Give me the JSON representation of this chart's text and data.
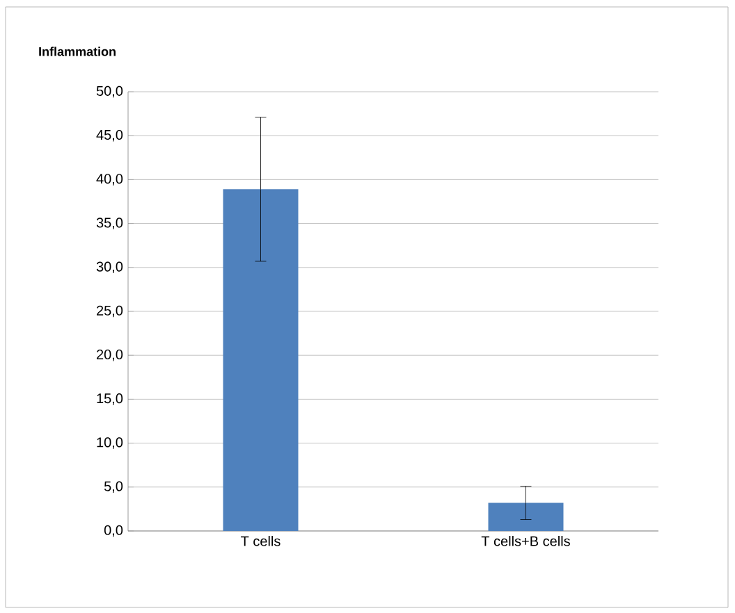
{
  "chart_data": {
    "type": "bar",
    "title": "Inflammation",
    "categories": [
      "T cells",
      "T cells+B cells"
    ],
    "values": [
      38.9,
      3.2
    ],
    "errors": [
      8.2,
      1.9
    ],
    "color": "#4f81bd",
    "ylim": [
      0,
      50
    ],
    "yticks": [
      {
        "value": 0,
        "label": "0,0"
      },
      {
        "value": 5,
        "label": "5,0"
      },
      {
        "value": 10,
        "label": "10,0"
      },
      {
        "value": 15,
        "label": "15,0"
      },
      {
        "value": 20,
        "label": "20,0"
      },
      {
        "value": 25,
        "label": "25,0"
      },
      {
        "value": 30,
        "label": "30,0"
      },
      {
        "value": 35,
        "label": "35,0"
      },
      {
        "value": 40,
        "label": "40,0"
      },
      {
        "value": 45,
        "label": "45,0"
      },
      {
        "value": 50,
        "label": "50,0"
      }
    ],
    "grid": "y"
  }
}
